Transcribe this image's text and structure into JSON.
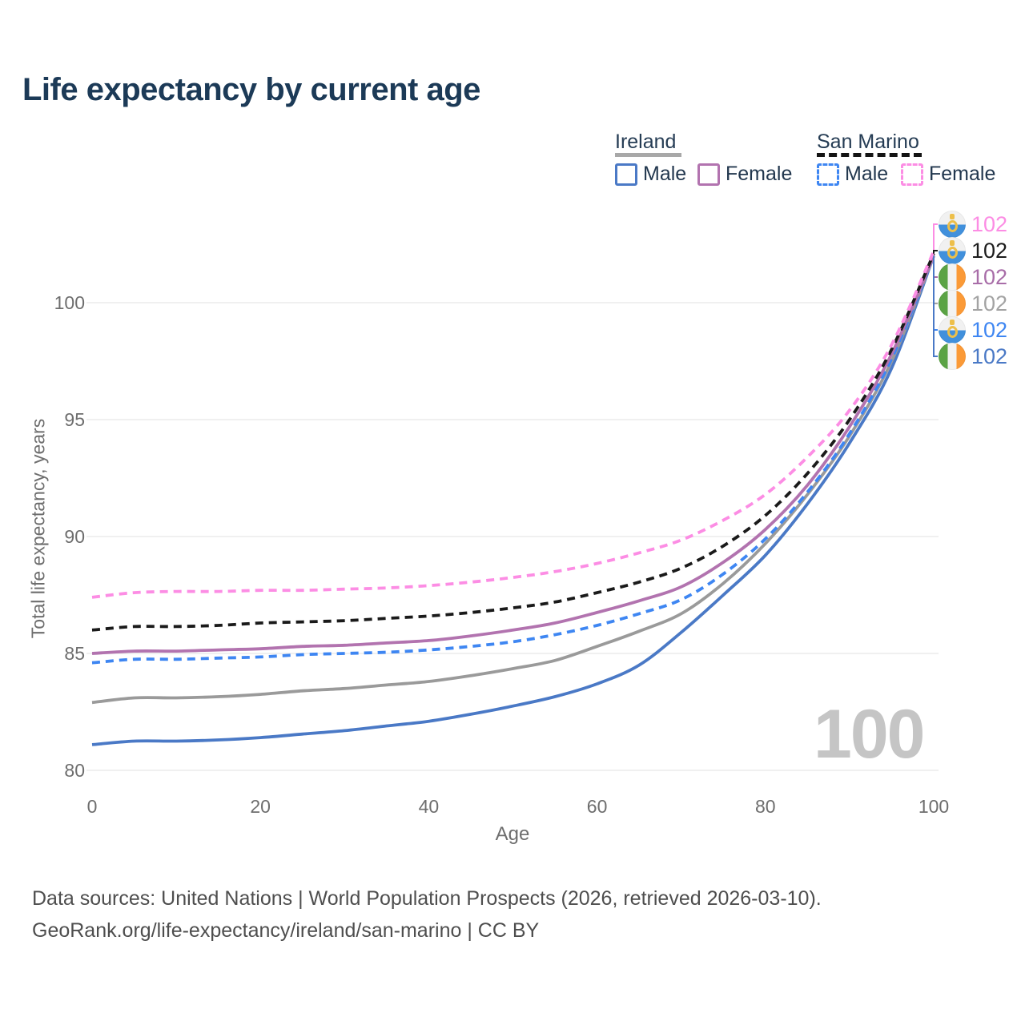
{
  "title": "Life expectancy by current age",
  "legend": {
    "groups": [
      {
        "name": "Ireland",
        "underline": "solid",
        "items": [
          {
            "label": "Male",
            "color": "#4a79c6",
            "dash": false
          },
          {
            "label": "Female",
            "color": "#b273af",
            "dash": false
          }
        ]
      },
      {
        "name": "San Marino",
        "underline": "dashed",
        "items": [
          {
            "label": "Male",
            "color": "#3e86f2",
            "dash": true
          },
          {
            "label": "Female",
            "color": "#fc8de4",
            "dash": true
          }
        ]
      }
    ]
  },
  "watermark": "100",
  "footer": {
    "line1": "Data sources: United Nations | World Population Prospects (2026, retrieved 2026-03-10).",
    "line2": "GeoRank.org/life-expectancy/ireland/san-marino | CC BY"
  },
  "end_labels": [
    {
      "value": "102",
      "flag": "sanmarino",
      "color": "#fc8de4",
      "series": "sm_female"
    },
    {
      "value": "102",
      "flag": "sanmarino",
      "color": "#1c1c1c",
      "series": "sm_total"
    },
    {
      "value": "102",
      "flag": "ireland",
      "color": "#a86da8",
      "series": "ie_female"
    },
    {
      "value": "102",
      "flag": "ireland",
      "color": "#a3a3a3",
      "series": "ie_total"
    },
    {
      "value": "102",
      "flag": "sanmarino",
      "color": "#3e86f2",
      "series": "sm_male"
    },
    {
      "value": "102",
      "flag": "ireland",
      "color": "#4a79c6",
      "series": "ie_male"
    }
  ],
  "chart_data": {
    "type": "line",
    "title": "Life expectancy by current age",
    "xlabel": "Age",
    "ylabel": "Total life expectancy, years",
    "x_ticks": [
      0,
      20,
      40,
      60,
      80,
      100
    ],
    "y_ticks": [
      80,
      85,
      90,
      95,
      100
    ],
    "xlim": [
      0,
      100
    ],
    "ylim": [
      80,
      102.5
    ],
    "grid": "horizontal",
    "legend_position": "top-right",
    "ages": [
      0,
      5,
      10,
      15,
      20,
      25,
      30,
      35,
      40,
      45,
      50,
      55,
      60,
      65,
      70,
      75,
      80,
      85,
      90,
      95,
      100
    ],
    "series": [
      {
        "id": "ie_male",
        "name": "Ireland Male",
        "color": "#4a79c6",
        "dash": false,
        "values": [
          81.1,
          81.25,
          81.25,
          81.3,
          81.4,
          81.55,
          81.7,
          81.9,
          82.1,
          82.4,
          82.75,
          83.15,
          83.7,
          84.5,
          85.9,
          87.5,
          89.2,
          91.4,
          94.0,
          97.2,
          102.0
        ]
      },
      {
        "id": "ie_total",
        "name": "Ireland Both sexes",
        "color": "#9a9a9a",
        "dash": false,
        "values": [
          82.9,
          83.1,
          83.1,
          83.15,
          83.25,
          83.4,
          83.5,
          83.65,
          83.8,
          84.05,
          84.35,
          84.7,
          85.3,
          85.95,
          86.7,
          88.0,
          89.7,
          91.8,
          94.3,
          97.5,
          102.0
        ]
      },
      {
        "id": "sm_male",
        "name": "San Marino Male",
        "color": "#3e86f2",
        "dash": true,
        "values": [
          84.6,
          84.75,
          84.75,
          84.8,
          84.85,
          84.95,
          85.0,
          85.05,
          85.15,
          85.3,
          85.5,
          85.8,
          86.2,
          86.7,
          87.3,
          88.4,
          89.9,
          91.9,
          94.4,
          97.6,
          102.0
        ]
      },
      {
        "id": "ie_female",
        "name": "Ireland Female",
        "color": "#b273af",
        "dash": false,
        "values": [
          85.0,
          85.1,
          85.1,
          85.15,
          85.2,
          85.3,
          85.35,
          85.45,
          85.55,
          85.75,
          86.0,
          86.3,
          86.75,
          87.25,
          87.85,
          88.9,
          90.3,
          92.2,
          94.7,
          97.8,
          102.0
        ]
      },
      {
        "id": "sm_total",
        "name": "San Marino Both sexes",
        "color": "#1a1a1a",
        "dash": true,
        "values": [
          86.0,
          86.15,
          86.15,
          86.2,
          86.3,
          86.35,
          86.4,
          86.5,
          86.6,
          86.75,
          86.95,
          87.2,
          87.6,
          88.05,
          88.65,
          89.6,
          90.9,
          92.7,
          95.0,
          98.0,
          102.1
        ]
      },
      {
        "id": "sm_female",
        "name": "San Marino Female",
        "color": "#fc8de4",
        "dash": true,
        "values": [
          87.4,
          87.6,
          87.65,
          87.65,
          87.7,
          87.7,
          87.75,
          87.8,
          87.9,
          88.05,
          88.25,
          88.5,
          88.85,
          89.3,
          89.85,
          90.7,
          91.8,
          93.4,
          95.4,
          98.2,
          102.2
        ]
      }
    ]
  }
}
